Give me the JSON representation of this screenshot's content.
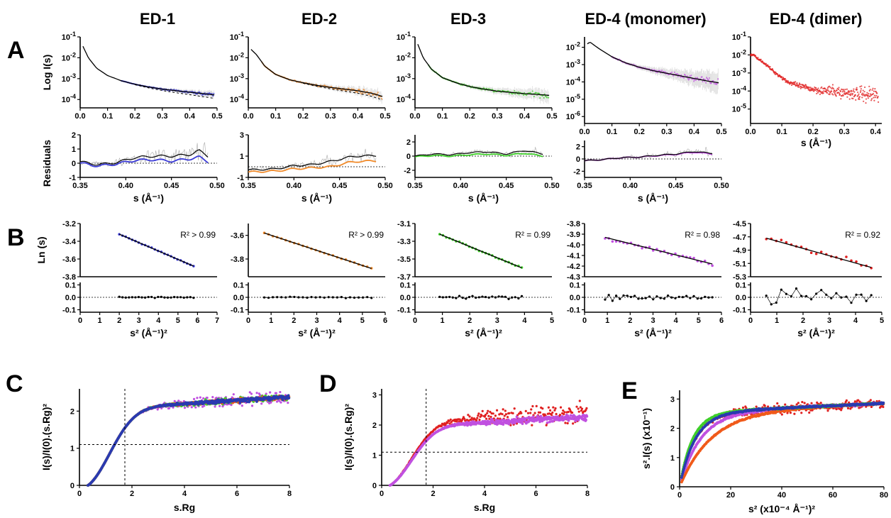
{
  "headers": [
    "ED-1",
    "ED-2",
    "ED-3",
    "ED-4 (monomer)",
    "ED-4 (dimer)"
  ],
  "panel_letters": [
    "A",
    "B",
    "C",
    "D",
    "E"
  ],
  "colors": {
    "ED-1": "#3a3ad6",
    "ED-2": "#f08a2a",
    "ED-3": "#3fcf2a",
    "ED-4 (monomer)": "#c050e0",
    "ED-4 (dimer)": "#e02020",
    "fit": "#000000",
    "C_orange": "#f05a1a",
    "C_blue": "#2a3ab0"
  },
  "chart_data": [
    {
      "id": "A-top-1",
      "type": "scatter",
      "series_name": "ED-1",
      "ylabel": "Log I(s)",
      "xlim": [
        0,
        0.5
      ],
      "ylog": true,
      "ylim_exp": [
        -4.4,
        -1
      ],
      "yticks_exp": [
        -1,
        -2,
        -3,
        -4
      ],
      "xticks": [
        0,
        0.1,
        0.2,
        0.3,
        0.4,
        0.5
      ],
      "xtick_labels": [
        "0.0",
        "0.1",
        "0.2",
        "0.3",
        "0.4",
        "0.5"
      ],
      "fit_x": [
        0.01,
        0.03,
        0.06,
        0.1,
        0.15,
        0.2,
        0.25,
        0.3,
        0.35,
        0.4,
        0.45,
        0.49
      ],
      "fit_logy": [
        -1.45,
        -2.0,
        -2.5,
        -2.85,
        -3.1,
        -3.27,
        -3.4,
        -3.5,
        -3.58,
        -3.65,
        -3.72,
        -3.78
      ],
      "data_from": 0.15,
      "noise": 0.08
    },
    {
      "id": "A-top-2",
      "type": "scatter",
      "series_name": "ED-2",
      "xlim": [
        0,
        0.5
      ],
      "ylog": true,
      "ylim_exp": [
        -4.4,
        -1
      ],
      "yticks_exp": [
        -1,
        -2,
        -3,
        -4
      ],
      "xticks": [
        0,
        0.1,
        0.2,
        0.3,
        0.4,
        0.5
      ],
      "xtick_labels": [
        "0.0",
        "0.1",
        "0.2",
        "0.3",
        "0.4",
        "0.5"
      ],
      "fit_x": [
        0.01,
        0.03,
        0.06,
        0.1,
        0.15,
        0.2,
        0.25,
        0.3,
        0.35,
        0.4,
        0.45,
        0.49
      ],
      "fit_logy": [
        -1.6,
        -1.85,
        -2.4,
        -2.8,
        -3.05,
        -3.2,
        -3.32,
        -3.42,
        -3.5,
        -3.58,
        -3.7,
        -3.85
      ],
      "data_from": 0.05,
      "noise": 0.12
    },
    {
      "id": "A-top-3",
      "type": "scatter",
      "series_name": "ED-3",
      "xlim": [
        0,
        0.5
      ],
      "ylog": true,
      "ylim_exp": [
        -4.4,
        -1
      ],
      "yticks_exp": [
        -1,
        -2,
        -3,
        -4
      ],
      "xticks": [
        0,
        0.1,
        0.2,
        0.3,
        0.4,
        0.5
      ],
      "xtick_labels": [
        "0.0",
        "0.1",
        "0.2",
        "0.3",
        "0.4",
        "0.5"
      ],
      "fit_x": [
        0.01,
        0.03,
        0.06,
        0.1,
        0.15,
        0.2,
        0.25,
        0.3,
        0.35,
        0.4,
        0.45,
        0.49
      ],
      "fit_logy": [
        -1.35,
        -2.0,
        -2.55,
        -2.95,
        -3.2,
        -3.38,
        -3.5,
        -3.6,
        -3.66,
        -3.72,
        -3.76,
        -3.8
      ],
      "data_from": 0.05,
      "noise": 0.15
    },
    {
      "id": "A-top-4",
      "type": "scatter",
      "series_name": "ED-4 (monomer)",
      "xlim": [
        0,
        0.5
      ],
      "ylog": true,
      "ylim_exp": [
        -6.4,
        -1.4
      ],
      "yticks_exp": [
        -2,
        -3,
        -4,
        -5,
        -6
      ],
      "xticks": [
        0,
        0.1,
        0.2,
        0.3,
        0.4,
        0.5
      ],
      "xtick_labels": [
        "0.0",
        "0.1",
        "0.2",
        "0.3",
        "0.4",
        "0.5"
      ],
      "fit_x": [
        0.01,
        0.02,
        0.05,
        0.1,
        0.15,
        0.2,
        0.25,
        0.3,
        0.35,
        0.4,
        0.45,
        0.49
      ],
      "fit_logy": [
        -1.8,
        -1.7,
        -2.05,
        -2.55,
        -2.9,
        -3.15,
        -3.35,
        -3.5,
        -3.65,
        -3.8,
        -3.95,
        -4.05
      ],
      "data_from": 0.1,
      "noise": 0.25
    },
    {
      "id": "A-top-5",
      "type": "scatter",
      "series_name": "ED-4 (dimer)",
      "xlim": [
        0,
        0.42
      ],
      "ylog": true,
      "ylim_exp": [
        -5.8,
        -1
      ],
      "yticks_exp": [
        -1,
        -2,
        -3,
        -4,
        -5
      ],
      "xticks": [
        0,
        0.1,
        0.2,
        0.3,
        0.4
      ],
      "xtick_labels": [
        "0.0",
        "0.1",
        "0.2",
        "0.3",
        "0.4"
      ],
      "xlabel": "s (Å⁻¹)",
      "fit_x": [],
      "fit_logy": [],
      "data_x": [
        0.01,
        0.02,
        0.04,
        0.06,
        0.08,
        0.1,
        0.12,
        0.15,
        0.2,
        0.25,
        0.3,
        0.35,
        0.4
      ],
      "data_logy": [
        -2.0,
        -2.15,
        -2.4,
        -2.7,
        -3.0,
        -3.25,
        -3.5,
        -3.7,
        -3.9,
        -4.0,
        -4.1,
        -4.15,
        -4.2
      ],
      "data_from": 0.0,
      "noise": 0.5
    },
    {
      "id": "A-res-1",
      "type": "line",
      "series_name": "ED-1",
      "ylabel": "Residuals",
      "xlim": [
        0.35,
        0.5
      ],
      "ylim": [
        -1,
        2
      ],
      "yticks": [
        -1,
        0,
        1,
        2
      ],
      "xticks": [
        0.35,
        0.4,
        0.45,
        0.5
      ],
      "xtick_labels": [
        "0.35",
        "0.40",
        "0.45",
        "0.50"
      ],
      "xlabel": "s (Å⁻¹)",
      "black": [
        [
          0.35,
          0.1
        ],
        [
          0.37,
          -0.1
        ],
        [
          0.39,
          0.05
        ],
        [
          0.41,
          0.4
        ],
        [
          0.43,
          0.5
        ],
        [
          0.45,
          0.5
        ],
        [
          0.47,
          0.6
        ],
        [
          0.48,
          0.9
        ],
        [
          0.49,
          0.5
        ]
      ],
      "colored": [
        [
          0.35,
          0.0
        ],
        [
          0.37,
          -0.2
        ],
        [
          0.39,
          -0.05
        ],
        [
          0.41,
          0.2
        ],
        [
          0.43,
          0.25
        ],
        [
          0.45,
          0.15
        ],
        [
          0.47,
          0.3
        ],
        [
          0.48,
          0.45
        ],
        [
          0.49,
          0.1
        ]
      ]
    },
    {
      "id": "A-res-2",
      "type": "line",
      "series_name": "ED-2",
      "xlim": [
        0.35,
        0.5
      ],
      "ylim": [
        -1,
        3
      ],
      "yticks": [
        -1,
        1,
        3
      ],
      "xticks": [
        0.35,
        0.4,
        0.45,
        0.5
      ],
      "xtick_labels": [
        "0.35",
        "0.40",
        "0.45",
        "0.50"
      ],
      "xlabel": "s (Å⁻¹)",
      "black": [
        [
          0.35,
          -0.3
        ],
        [
          0.38,
          -0.2
        ],
        [
          0.4,
          0.1
        ],
        [
          0.42,
          0.2
        ],
        [
          0.44,
          0.5
        ],
        [
          0.46,
          0.9
        ],
        [
          0.47,
          1.0
        ],
        [
          0.49,
          1.05
        ]
      ],
      "colored": [
        [
          0.35,
          -0.5
        ],
        [
          0.38,
          -0.4
        ],
        [
          0.4,
          -0.2
        ],
        [
          0.42,
          -0.1
        ],
        [
          0.44,
          0.0
        ],
        [
          0.46,
          0.4
        ],
        [
          0.47,
          0.5
        ],
        [
          0.49,
          0.55
        ]
      ]
    },
    {
      "id": "A-res-3",
      "type": "line",
      "series_name": "ED-3",
      "xlim": [
        0.35,
        0.5
      ],
      "ylim": [
        -3,
        3
      ],
      "yticks": [
        -2,
        0,
        2
      ],
      "xticks": [
        0.35,
        0.4,
        0.45,
        0.5
      ],
      "xtick_labels": [
        "0.35",
        "0.40",
        "0.45",
        "0.50"
      ],
      "xlabel": "s (Å⁻¹)",
      "black": [
        [
          0.35,
          0.0
        ],
        [
          0.37,
          0.3
        ],
        [
          0.39,
          0.2
        ],
        [
          0.41,
          0.5
        ],
        [
          0.43,
          0.6
        ],
        [
          0.45,
          0.3
        ],
        [
          0.47,
          0.8
        ],
        [
          0.49,
          0.3
        ]
      ],
      "colored": [
        [
          0.35,
          -0.1
        ],
        [
          0.37,
          0.1
        ],
        [
          0.39,
          0.0
        ],
        [
          0.41,
          0.2
        ],
        [
          0.43,
          0.3
        ],
        [
          0.45,
          0.1
        ],
        [
          0.47,
          0.4
        ],
        [
          0.49,
          0.0
        ]
      ]
    },
    {
      "id": "A-res-4",
      "type": "line",
      "series_name": "ED-4 (monomer)",
      "xlim": [
        0.35,
        0.5
      ],
      "ylim": [
        -3,
        3
      ],
      "yticks": [
        -2,
        0,
        2
      ],
      "xticks": [
        0.35,
        0.4,
        0.45,
        0.5
      ],
      "xtick_labels": [
        "0.35",
        "0.40",
        "0.45",
        "0.50"
      ],
      "xlabel": "s (Å⁻¹)",
      "black": [
        [
          0.35,
          -0.3
        ],
        [
          0.37,
          -0.1
        ],
        [
          0.39,
          0.2
        ],
        [
          0.41,
          0.3
        ],
        [
          0.43,
          0.6
        ],
        [
          0.45,
          0.8
        ],
        [
          0.47,
          1.2
        ],
        [
          0.49,
          0.9
        ]
      ],
      "colored": [
        [
          0.35,
          -0.3
        ],
        [
          0.37,
          -0.1
        ],
        [
          0.39,
          0.2
        ],
        [
          0.41,
          0.3
        ],
        [
          0.43,
          0.55
        ],
        [
          0.45,
          0.75
        ],
        [
          0.47,
          1.1
        ],
        [
          0.49,
          0.8
        ]
      ]
    },
    {
      "id": "B-1",
      "type": "scatter",
      "series_name": "ED-1",
      "ylabel": "Ln (s)",
      "xlim": [
        0,
        7
      ],
      "ylim": [
        -3.8,
        -3.2
      ],
      "yticks": [
        -3.2,
        -3.4,
        -3.6,
        -3.8
      ],
      "ytick_labels": [
        "-3.2",
        "-3.4",
        "-3.6",
        "-3.8"
      ],
      "x": [
        2.0,
        5.8
      ],
      "y": [
        -3.32,
        -3.68
      ],
      "r2": "R² > 0.99",
      "npts": 24,
      "res_xlim": [
        0,
        7
      ],
      "res_xticks": [
        0,
        1,
        2,
        3,
        4,
        5,
        6,
        7
      ],
      "res_xlabel": "s² (Å⁻¹)²",
      "res_amp": 0.005
    },
    {
      "id": "B-2",
      "type": "scatter",
      "series_name": "ED-2",
      "xlim": [
        0,
        6
      ],
      "ylim": [
        -3.95,
        -3.5
      ],
      "yticks": [
        -3.6,
        -3.8
      ],
      "ytick_labels": [
        "-3.6",
        "-3.8"
      ],
      "x": [
        0.7,
        5.4
      ],
      "y": [
        -3.58,
        -3.88
      ],
      "r2": "R² > 0.99",
      "npts": 26,
      "res_xlim": [
        0,
        6
      ],
      "res_xticks": [
        0,
        1,
        2,
        3,
        4,
        5,
        6
      ],
      "res_xlabel": "s² (Å⁻¹)²",
      "res_amp": 0.005
    },
    {
      "id": "B-3",
      "type": "scatter",
      "series_name": "ED-3",
      "xlim": [
        0,
        5
      ],
      "ylim": [
        -3.7,
        -3.1
      ],
      "yticks": [
        -3.1,
        -3.3,
        -3.5,
        -3.7
      ],
      "ytick_labels": [
        "-3.1",
        "-3.3",
        "-3.5",
        "-3.7"
      ],
      "x": [
        0.9,
        3.9
      ],
      "y": [
        -3.22,
        -3.6
      ],
      "r2": "R² = 0.99",
      "npts": 26,
      "res_xlim": [
        0,
        5
      ],
      "res_xticks": [
        0,
        1,
        2,
        3,
        4,
        5
      ],
      "res_xlabel": "s² (Å⁻¹)²",
      "res_amp": 0.01
    },
    {
      "id": "B-4",
      "type": "scatter",
      "series_name": "ED-4 (monomer)",
      "xlim": [
        0,
        6
      ],
      "ylim": [
        -4.3,
        -3.8
      ],
      "yticks": [
        -3.8,
        -3.9,
        -4.0,
        -4.1,
        -4.2,
        -4.3
      ],
      "ytick_labels": [
        "-3.8",
        "-3.9",
        "-4.0",
        "-4.1",
        "-4.2",
        "-4.3"
      ],
      "x": [
        0.9,
        5.6
      ],
      "y": [
        -3.93,
        -4.18
      ],
      "r2": "R² = 0.98",
      "npts": 30,
      "res_xlim": [
        0,
        6
      ],
      "res_xticks": [
        0,
        1,
        2,
        3,
        4,
        5,
        6
      ],
      "res_xlabel": "s² (Å⁻¹)²",
      "res_amp": 0.025
    },
    {
      "id": "B-5",
      "type": "scatter",
      "series_name": "ED-4 (dimer)",
      "xlim": [
        0,
        5
      ],
      "ylim": [
        -5.3,
        -4.5
      ],
      "yticks": [
        -4.5,
        -4.7,
        -4.9,
        -5.1,
        -5.3
      ],
      "ytick_labels": [
        "-4.5",
        "-4.7",
        "-4.9",
        "-5.1",
        "-5.3"
      ],
      "x": [
        0.6,
        4.6
      ],
      "y": [
        -4.72,
        -5.16
      ],
      "r2": "R² = 0.92",
      "npts": 22,
      "res_xlim": [
        0,
        5
      ],
      "res_xticks": [
        0,
        1,
        2,
        3,
        4,
        5
      ],
      "res_xlabel": "s² (Å⁻¹)²",
      "res_amp": 0.06
    },
    {
      "id": "C",
      "type": "scatter",
      "ylabel": "I(s)/I(0).(s.Rg)²",
      "xlabel": "s.Rg",
      "xlim": [
        0,
        8
      ],
      "ylim": [
        0,
        2.6
      ],
      "xticks": [
        0,
        2,
        4,
        6,
        8
      ],
      "yticks": [
        0,
        1,
        2
      ],
      "vline_x": 1.73,
      "hline_y": 1.1,
      "series": [
        {
          "name": "ED-4 (monomer)",
          "spread": 0.25
        },
        {
          "name": "ED-3",
          "spread": 0.1
        },
        {
          "name": "C_orange",
          "spread": 0.07
        },
        {
          "name": "C_blue",
          "spread": 0.07
        }
      ]
    },
    {
      "id": "D",
      "type": "scatter",
      "ylabel": "I(s)/I(0).(s.Rg)²",
      "xlabel": "s.Rg",
      "xlim": [
        0,
        8
      ],
      "ylim": [
        0,
        3.2
      ],
      "xticks": [
        0,
        2,
        4,
        6,
        8
      ],
      "yticks": [
        0,
        1,
        2,
        3
      ],
      "vline_x": 1.73,
      "hline_y": 1.1,
      "series": [
        {
          "name": "ED-4 (dimer)",
          "spread": 0.45
        },
        {
          "name": "ED-4 (monomer)",
          "spread": 0.15
        }
      ]
    },
    {
      "id": "E",
      "type": "scatter",
      "ylabel": "s².I(s) (x10⁻¹)",
      "xlabel": "s² (x10⁻⁴ Å⁻¹)²",
      "xlim": [
        0,
        80
      ],
      "ylim": [
        0,
        3.3
      ],
      "xticks": [
        0,
        20,
        40,
        60,
        80
      ],
      "yticks": [
        0,
        1,
        2,
        3
      ],
      "series": [
        {
          "name": "ED-4 (dimer)",
          "spread": 0.25
        },
        {
          "name": "ED-4 (monomer)",
          "spread": 0.06
        },
        {
          "name": "C_orange",
          "spread": 0.04
        },
        {
          "name": "ED-3",
          "spread": 0.04
        },
        {
          "name": "C_blue",
          "spread": 0.04
        }
      ]
    }
  ]
}
